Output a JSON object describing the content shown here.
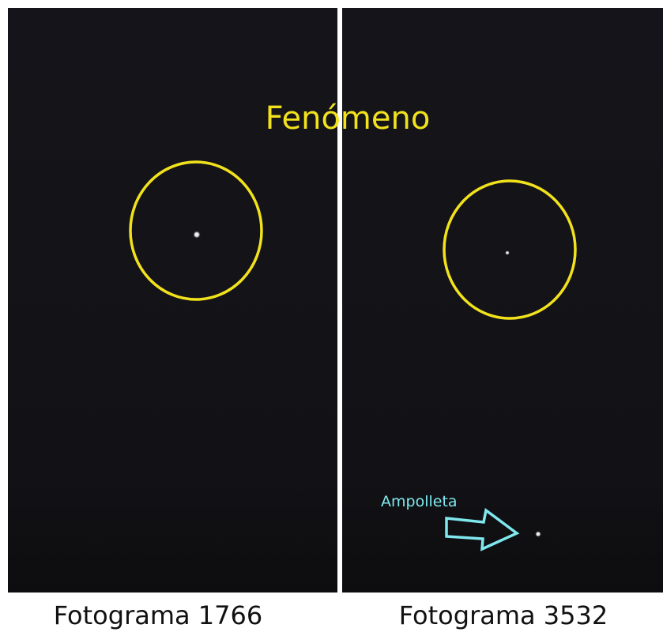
{
  "title": "Fenómeno",
  "panels": [
    {
      "caption": "Fotograma 1766"
    },
    {
      "caption": "Fotograma 3532",
      "annotation": "Ampolleta"
    }
  ]
}
